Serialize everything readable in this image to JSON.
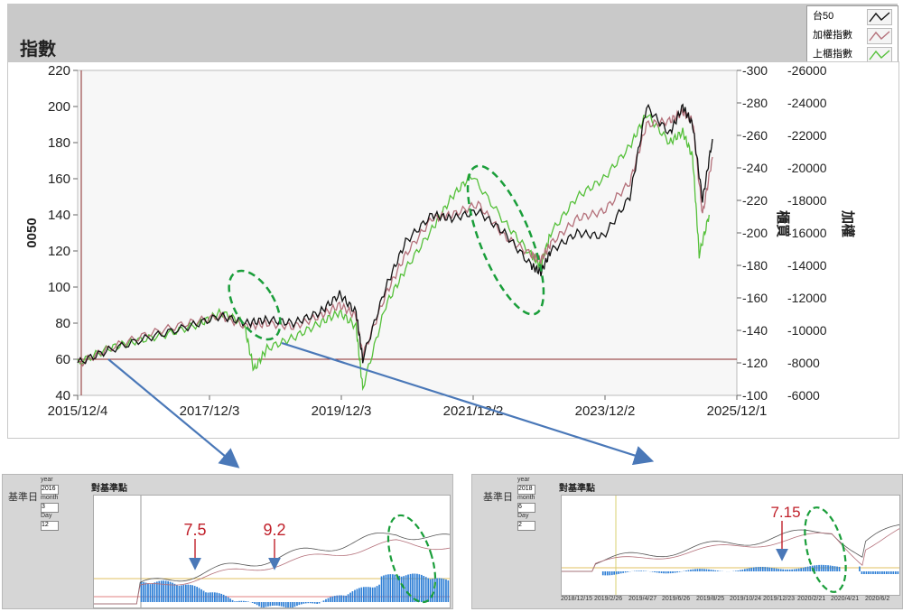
{
  "main": {
    "title": "指數",
    "legend": [
      {
        "label": "台50",
        "color": "#111111"
      },
      {
        "label": "加權指數",
        "color": "#b4707a"
      },
      {
        "label": "上櫃指數",
        "color": "#55c03a"
      }
    ],
    "y_left_label": "0050",
    "y_right_inner_label": "櫃買",
    "y_right_outer_label": "加權",
    "y_left_ticks": [
      "220",
      "200",
      "180",
      "160",
      "140",
      "120",
      "100",
      "80",
      "60",
      "40"
    ],
    "y_right_inner_ticks": [
      "-300",
      "-280",
      "-260",
      "-240",
      "-220",
      "-200",
      "-180",
      "-160",
      "-140",
      "-120",
      "-100"
    ],
    "y_right_outer_ticks": [
      "-26000",
      "-24000",
      "-22000",
      "-20000",
      "-18000",
      "-16000",
      "-14000",
      "-12000",
      "-10000",
      "-8000",
      "-6000"
    ],
    "x_ticks": [
      "2015/12/4",
      "2017/12/3",
      "2019/12/3",
      "2021/12/2",
      "2023/12/2",
      "2025/12/1"
    ]
  },
  "chart_data": [
    {
      "type": "line",
      "x_ticks": [
        "2015/12/4",
        "2017/12/3",
        "2019/12/3",
        "2021/12/2",
        "2023/12/2",
        "2025/12/1"
      ],
      "ylim_left": [
        40,
        220
      ],
      "ylim_right_inner": [
        100,
        300
      ],
      "ylim_right_outer": [
        6000,
        26000
      ],
      "y_left_label": "0050",
      "series": [
        {
          "name": "台50",
          "x": [
            2015.93,
            2016.4,
            2017.0,
            2017.6,
            2018.1,
            2018.5,
            2018.8,
            2019.2,
            2019.6,
            2019.9,
            2020.15,
            2020.25,
            2020.6,
            2020.9,
            2021.3,
            2021.6,
            2022.0,
            2022.4,
            2022.8,
            2022.95,
            2023.1,
            2023.5,
            2023.9,
            2024.3,
            2024.55,
            2024.9,
            2025.1,
            2025.25,
            2025.4,
            2025.55
          ],
          "y": [
            58,
            65,
            72,
            78,
            84,
            80,
            82,
            80,
            86,
            96,
            86,
            60,
            100,
            125,
            140,
            138,
            142,
            130,
            112,
            108,
            120,
            130,
            128,
            150,
            200,
            185,
            200,
            190,
            148,
            182
          ]
        },
        {
          "name": "加權指數",
          "x": [
            2015.93,
            2016.4,
            2017.0,
            2017.6,
            2018.1,
            2018.5,
            2018.8,
            2019.2,
            2019.6,
            2019.9,
            2020.15,
            2020.25,
            2020.6,
            2020.9,
            2021.3,
            2021.6,
            2022.0,
            2022.4,
            2022.8,
            2022.95,
            2023.1,
            2023.5,
            2023.9,
            2024.3,
            2024.55,
            2024.9,
            2025.1,
            2025.25,
            2025.4,
            2025.55
          ],
          "y": [
            57,
            66,
            74,
            80,
            84,
            78,
            80,
            78,
            84,
            90,
            84,
            62,
            96,
            118,
            138,
            140,
            146,
            128,
            118,
            115,
            124,
            138,
            142,
            158,
            190,
            192,
            197,
            192,
            140,
            172
          ]
        },
        {
          "name": "上櫃指數",
          "x": [
            2015.93,
            2016.4,
            2016.8,
            2017.3,
            2017.8,
            2018.1,
            2018.45,
            2018.6,
            2018.8,
            2019.2,
            2019.6,
            2019.9,
            2020.15,
            2020.25,
            2020.6,
            2020.9,
            2021.3,
            2021.6,
            2021.9,
            2022.4,
            2022.8,
            2022.95,
            2023.1,
            2023.5,
            2023.9,
            2024.3,
            2024.55,
            2024.9,
            2025.1,
            2025.25,
            2025.35,
            2025.5
          ],
          "y": [
            58,
            66,
            70,
            74,
            80,
            86,
            80,
            54,
            66,
            72,
            80,
            86,
            78,
            44,
            90,
            110,
            132,
            150,
            162,
            136,
            118,
            112,
            130,
            150,
            160,
            178,
            196,
            180,
            186,
            172,
            118,
            140
          ]
        }
      ]
    },
    {
      "type": "bar",
      "title": "對基準點",
      "annotations": [
        "7.5",
        "9.2"
      ]
    },
    {
      "type": "bar",
      "title": "對基準點",
      "annotations": [
        "7.15"
      ]
    }
  ],
  "sub_left": {
    "label": "基準日",
    "fields": [
      {
        "label": "year",
        "value": "2016"
      },
      {
        "label": "month",
        "value": "3"
      },
      {
        "label": "Day",
        "value": "12"
      }
    ],
    "chart_title": "對基準點",
    "annotations": [
      "7.5",
      "9.2"
    ]
  },
  "sub_right": {
    "label": "基準日",
    "fields": [
      {
        "label": "year",
        "value": "2018"
      },
      {
        "label": "month",
        "value": "6"
      },
      {
        "label": "Day",
        "value": "2"
      }
    ],
    "chart_title": "對基準點",
    "annotations": [
      "7.15"
    ],
    "x_ticks": [
      "2018/12/15",
      "2019/2/26",
      "2019/4/27",
      "2019/6/26",
      "2019/8/25",
      "2019/10/24",
      "2019/12/23",
      "2020/2/21",
      "2020/4/21",
      "2020/6/2"
    ]
  },
  "colors": {
    "black": "#111111",
    "weighted": "#b4707a",
    "otc": "#55c03a",
    "arrow": "#4a78b8",
    "ellipse": "#1a9e3a",
    "bars": "#2f7fd6",
    "annotation": "#c0202a"
  }
}
